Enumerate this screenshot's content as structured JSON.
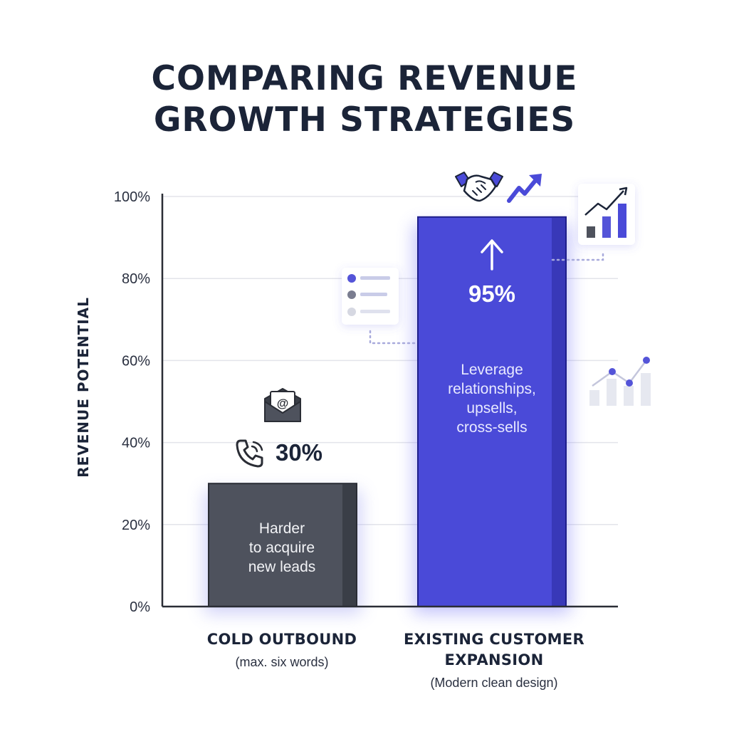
{
  "title_lines": [
    "COMPARING REVENUE",
    "GROWTH STRATEGIES"
  ],
  "chart_data": {
    "type": "bar",
    "title": "COMPARING REVENUE GROWTH STRATEGIES",
    "ylabel": "REVENUE POTENTIAL",
    "ylim": [
      0,
      100
    ],
    "yticks": [
      0,
      20,
      40,
      60,
      80,
      100
    ],
    "ytick_labels": [
      "0%",
      "20%",
      "40%",
      "60%",
      "80%",
      "100%"
    ],
    "grid": true,
    "categories": [
      "COLD OUTBOUND",
      "EXISTING CUSTOMER EXPANSION"
    ],
    "category_subtitles": [
      "(max. six words)",
      "(Modern clean design)"
    ],
    "values": [
      30,
      95
    ],
    "value_labels": [
      "30%",
      "95%"
    ],
    "bar_notes": [
      [
        "Harder",
        "to acquire",
        "new leads"
      ],
      [
        "Leverage",
        "relationships,",
        "upsells,",
        "cross-sells"
      ]
    ],
    "colors": {
      "cold_bar": "#4e525d",
      "cold_bar_shade": "#3a3e47",
      "expansion_bar": "#4a4ad8",
      "expansion_bar_shade": "#3838b8",
      "accent": "#4a4ad8",
      "text_dark": "#1b2438"
    },
    "icons": {
      "cold": [
        "envelope-at-icon",
        "phone-icon"
      ],
      "expansion": [
        "handshake-icon",
        "trend-up-arrow-icon",
        "up-arrow-icon"
      ],
      "decor": [
        "list-card-icon",
        "bar-chart-card-icon",
        "line-chart-icon"
      ]
    }
  }
}
